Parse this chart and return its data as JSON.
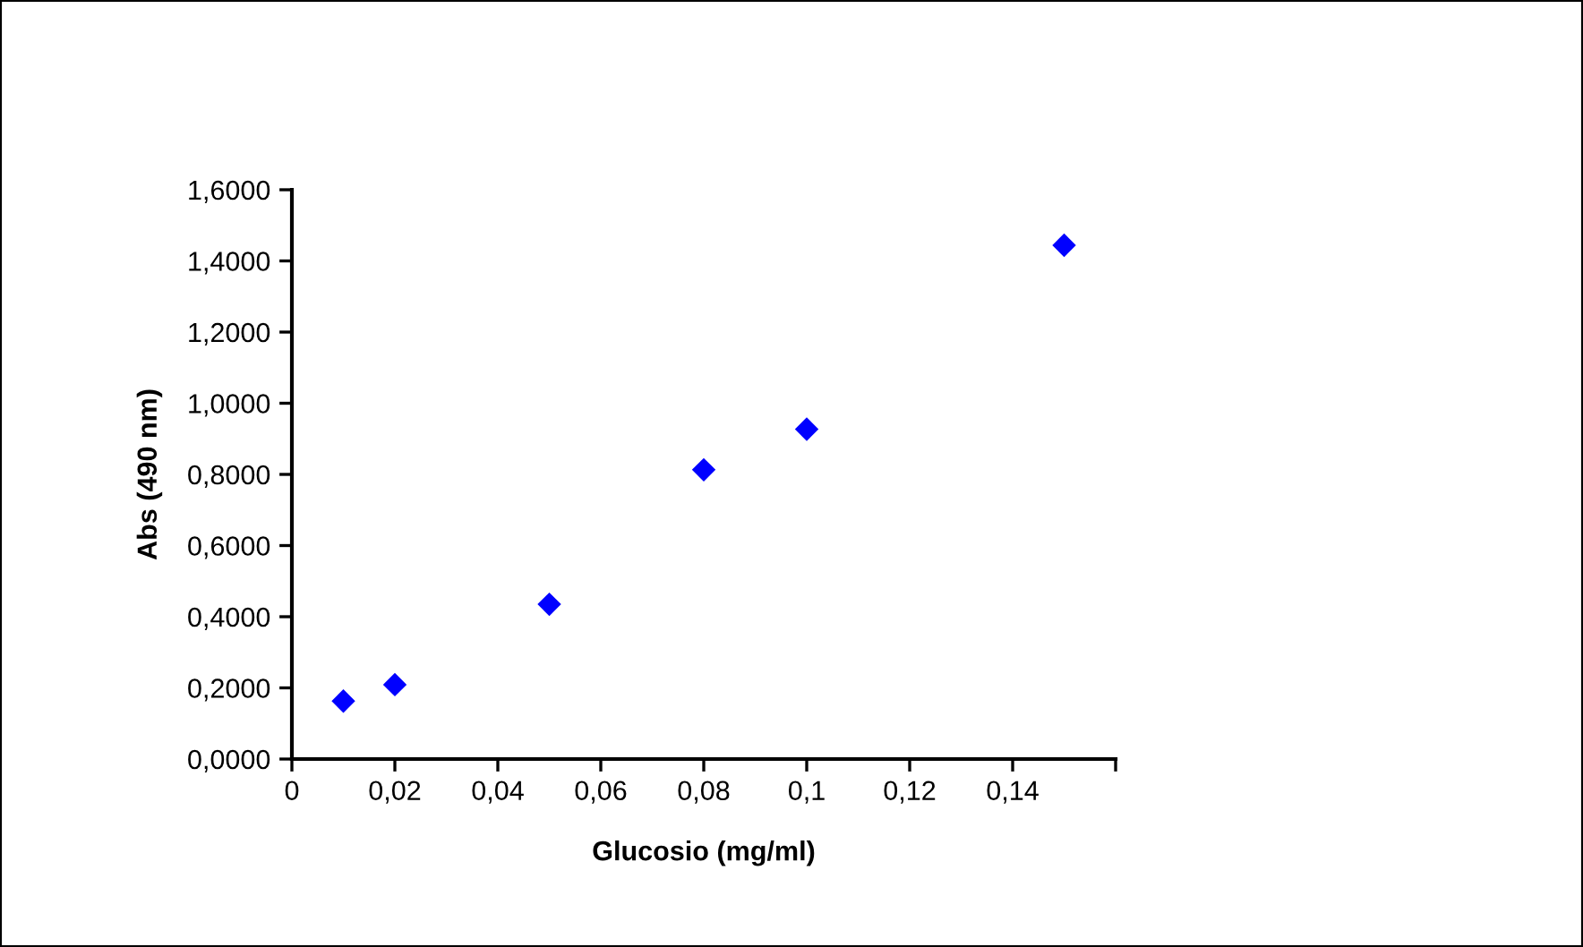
{
  "chart_data": {
    "type": "scatter",
    "xlabel": "Glucosio (mg/ml)",
    "ylabel": "Abs (490 nm)",
    "x": [
      0.01,
      0.02,
      0.05,
      0.08,
      0.1,
      0.15
    ],
    "series": [
      {
        "color": "#0000ff",
        "values": [
          0.163,
          0.209,
          0.435,
          0.813,
          0.927,
          1.444
        ]
      }
    ],
    "marker": "diamond",
    "grid": false,
    "legend": false,
    "xlim": [
      0,
      0.16
    ],
    "xticks": [
      0,
      {
        "value": 0.02,
        "label": "0,02"
      },
      {
        "value": 0.04,
        "label": "0,04"
      },
      {
        "value": 0.06,
        "label": "0,06"
      },
      {
        "value": 0.08,
        "label": "0,08"
      },
      {
        "value": 0.1,
        "label": "0,1"
      },
      {
        "value": 0.12,
        "label": "0,12"
      },
      {
        "value": 0.14,
        "label": "0,14"
      },
      {
        "value": 0.16,
        "label": null
      }
    ],
    "ylim": [
      0,
      1.6
    ],
    "yticks": [
      {
        "value": 0,
        "label": "0,0000"
      },
      {
        "value": 0.2,
        "label": "0,2000"
      },
      {
        "value": 0.4,
        "label": "0,4000"
      },
      {
        "value": 0.6,
        "label": "0,6000"
      },
      {
        "value": 0.8,
        "label": "0,8000"
      },
      {
        "value": 1.0,
        "label": "1,0000"
      },
      {
        "value": 1.2,
        "label": "1,2000"
      },
      {
        "value": 1.4,
        "label": "1,4000"
      },
      {
        "value": 1.6,
        "label": "1,6000"
      }
    ]
  }
}
